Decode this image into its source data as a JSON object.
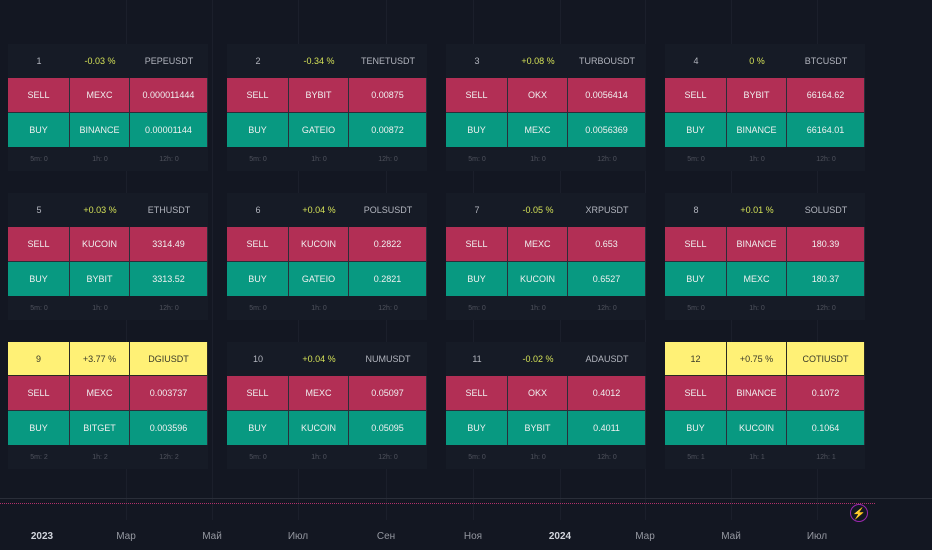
{
  "panels": [
    {
      "n": "1",
      "pct": "-0.03 %",
      "symbol": "PEPEUSDT",
      "sell_ex": "MEXC",
      "sell_price": "0.000011444",
      "buy_ex": "BINANCE",
      "buy_price": "0.00001144",
      "f5": "5m: 0",
      "f1": "1h: 0",
      "f12": "12h: 0",
      "highlight": false
    },
    {
      "n": "2",
      "pct": "-0.34 %",
      "symbol": "TENETUSDT",
      "sell_ex": "BYBIT",
      "sell_price": "0.00875",
      "buy_ex": "GATEIO",
      "buy_price": "0.00872",
      "f5": "5m: 0",
      "f1": "1h: 0",
      "f12": "12h: 0",
      "highlight": false
    },
    {
      "n": "3",
      "pct": "+0.08 %",
      "symbol": "TURBOUSDT",
      "sell_ex": "OKX",
      "sell_price": "0.0056414",
      "buy_ex": "MEXC",
      "buy_price": "0.0056369",
      "f5": "5m: 0",
      "f1": "1h: 0",
      "f12": "12h: 0",
      "highlight": false
    },
    {
      "n": "4",
      "pct": "0 %",
      "symbol": "BTCUSDT",
      "sell_ex": "BYBIT",
      "sell_price": "66164.62",
      "buy_ex": "BINANCE",
      "buy_price": "66164.01",
      "f5": "5m: 0",
      "f1": "1h: 0",
      "f12": "12h: 0",
      "highlight": false
    },
    {
      "n": "5",
      "pct": "+0.03 %",
      "symbol": "ETHUSDT",
      "sell_ex": "KUCOIN",
      "sell_price": "3314.49",
      "buy_ex": "BYBIT",
      "buy_price": "3313.52",
      "f5": "5m: 0",
      "f1": "1h: 0",
      "f12": "12h: 0",
      "highlight": false
    },
    {
      "n": "6",
      "pct": "+0.04 %",
      "symbol": "POLSUSDT",
      "sell_ex": "KUCOIN",
      "sell_price": "0.2822",
      "buy_ex": "GATEIO",
      "buy_price": "0.2821",
      "f5": "5m: 0",
      "f1": "1h: 0",
      "f12": "12h: 0",
      "highlight": false
    },
    {
      "n": "7",
      "pct": "-0.05 %",
      "symbol": "XRPUSDT",
      "sell_ex": "MEXC",
      "sell_price": "0.653",
      "buy_ex": "KUCOIN",
      "buy_price": "0.6527",
      "f5": "5m: 0",
      "f1": "1h: 0",
      "f12": "12h: 0",
      "highlight": false
    },
    {
      "n": "8",
      "pct": "+0.01 %",
      "symbol": "SOLUSDT",
      "sell_ex": "BINANCE",
      "sell_price": "180.39",
      "buy_ex": "MEXC",
      "buy_price": "180.37",
      "f5": "5m: 0",
      "f1": "1h: 0",
      "f12": "12h: 0",
      "highlight": false
    },
    {
      "n": "9",
      "pct": "+3.77 %",
      "symbol": "DGIUSDT",
      "sell_ex": "MEXC",
      "sell_price": "0.003737",
      "buy_ex": "BITGET",
      "buy_price": "0.003596",
      "f5": "5m: 2",
      "f1": "1h: 2",
      "f12": "12h: 2",
      "highlight": true
    },
    {
      "n": "10",
      "pct": "+0.04 %",
      "symbol": "NUMUSDT",
      "sell_ex": "MEXC",
      "sell_price": "0.05097",
      "buy_ex": "KUCOIN",
      "buy_price": "0.05095",
      "f5": "5m: 0",
      "f1": "1h: 0",
      "f12": "12h: 0",
      "highlight": false
    },
    {
      "n": "11",
      "pct": "-0.02 %",
      "symbol": "ADAUSDT",
      "sell_ex": "OKX",
      "sell_price": "0.4012",
      "buy_ex": "BYBIT",
      "buy_price": "0.4011",
      "f5": "5m: 0",
      "f1": "1h: 0",
      "f12": "12h: 0",
      "highlight": false
    },
    {
      "n": "12",
      "pct": "+0.75 %",
      "symbol": "COTIUSDT",
      "sell_ex": "BINANCE",
      "sell_price": "0.1072",
      "buy_ex": "KUCOIN",
      "buy_price": "0.1064",
      "f5": "5m: 1",
      "f1": "1h: 1",
      "f12": "12h: 1",
      "highlight": true
    }
  ],
  "labels": {
    "sell": "SELL",
    "buy": "BUY"
  },
  "time_axis": [
    {
      "label": "2023",
      "year": true
    },
    {
      "label": "Мар",
      "year": false
    },
    {
      "label": "Май",
      "year": false
    },
    {
      "label": "Июл",
      "year": false
    },
    {
      "label": "Сен",
      "year": false
    },
    {
      "label": "Ноя",
      "year": false
    },
    {
      "label": "2024",
      "year": true
    },
    {
      "label": "Мар",
      "year": false
    },
    {
      "label": "Май",
      "year": false
    },
    {
      "label": "Июл",
      "year": false
    }
  ],
  "colors": {
    "sell": "#b22f55",
    "buy": "#089981",
    "highlight": "#fff176",
    "background": "#131722"
  }
}
